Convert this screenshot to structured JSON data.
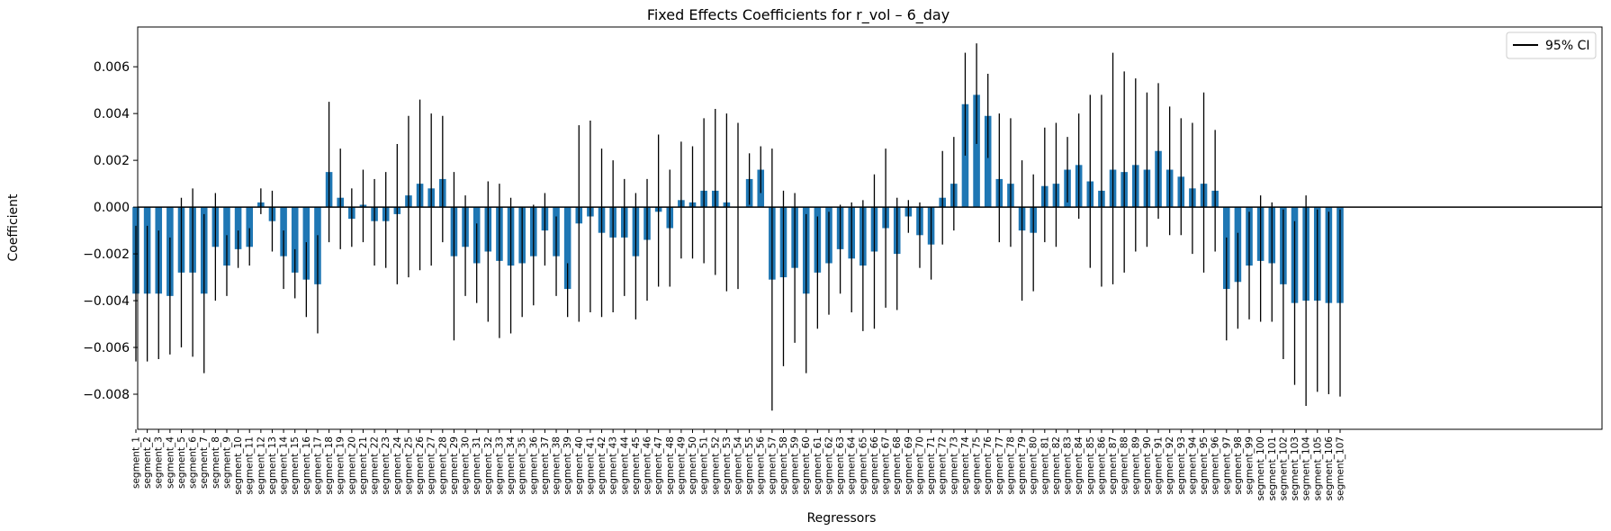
{
  "chart_data": {
    "type": "bar",
    "title": "Fixed Effects Coefficients for r_vol – 6_day",
    "xlabel": "Regressors",
    "ylabel": "Coefficient",
    "ylim": [
      -0.0095,
      0.0077
    ],
    "yticks": [
      -0.008,
      -0.006,
      -0.004,
      -0.002,
      0.0,
      0.002,
      0.004,
      0.006
    ],
    "ytick_labels": [
      "−0.008",
      "−0.006",
      "−0.004",
      "−0.002",
      "0.000",
      "0.002",
      "0.004",
      "0.006"
    ],
    "bar_color": "#1f77b4",
    "errorbar_color": "#000000",
    "zero_line": true,
    "grid": false,
    "legend": {
      "placement": "top-right",
      "entries": [
        "95% CI"
      ]
    },
    "categories": [
      "segment_1",
      "segment_2",
      "segment_3",
      "segment_4",
      "segment_5",
      "segment_6",
      "segment_7",
      "segment_8",
      "segment_9",
      "segment_10",
      "segment_11",
      "segment_12",
      "segment_13",
      "segment_14",
      "segment_15",
      "segment_16",
      "segment_17",
      "segment_18",
      "segment_19",
      "segment_20",
      "segment_21",
      "segment_22",
      "segment_23",
      "segment_24",
      "segment_25",
      "segment_26",
      "segment_27",
      "segment_28",
      "segment_29",
      "segment_30",
      "segment_31",
      "segment_32",
      "segment_33",
      "segment_34",
      "segment_35",
      "segment_36",
      "segment_37",
      "segment_38",
      "segment_39",
      "segment_40",
      "segment_41",
      "segment_42",
      "segment_43",
      "segment_44",
      "segment_45",
      "segment_46",
      "segment_47",
      "segment_48",
      "segment_49",
      "segment_50",
      "segment_51",
      "segment_52",
      "segment_53",
      "segment_54",
      "segment_55",
      "segment_56",
      "segment_57",
      "segment_58",
      "segment_59",
      "segment_60",
      "segment_61",
      "segment_62",
      "segment_63",
      "segment_64",
      "segment_65",
      "segment_66",
      "segment_67",
      "segment_68",
      "segment_69",
      "segment_70",
      "segment_71",
      "segment_72",
      "segment_73",
      "segment_74",
      "segment_75",
      "segment_76",
      "segment_77",
      "segment_78",
      "segment_79",
      "segment_80",
      "segment_81",
      "segment_82",
      "segment_83",
      "segment_84",
      "segment_85",
      "segment_86",
      "segment_87",
      "segment_88",
      "segment_89",
      "segment_90",
      "segment_91",
      "segment_92",
      "segment_93",
      "segment_94",
      "segment_95",
      "segment_96",
      "segment_97",
      "segment_98",
      "segment_99",
      "segment_100",
      "segment_101",
      "segment_102",
      "segment_103",
      "segment_104",
      "segment_105",
      "segment_106",
      "segment_107"
    ],
    "values": [
      -0.0037,
      -0.0037,
      -0.0037,
      -0.0038,
      -0.0028,
      -0.0028,
      -0.0037,
      -0.0017,
      -0.0025,
      -0.0018,
      -0.0017,
      0.0002,
      -0.0006,
      -0.0021,
      -0.0028,
      -0.0031,
      -0.0033,
      0.0015,
      0.0004,
      -0.0005,
      0.0001,
      -0.0006,
      -0.0006,
      -0.0003,
      0.0005,
      0.001,
      0.0008,
      0.0012,
      -0.0021,
      -0.0017,
      -0.0024,
      -0.0019,
      -0.0023,
      -0.0025,
      -0.0024,
      -0.0021,
      -0.001,
      -0.0021,
      -0.0035,
      -0.0007,
      -0.0004,
      -0.0011,
      -0.0013,
      -0.0013,
      -0.0021,
      -0.0014,
      -0.0002,
      -0.0009,
      0.0003,
      0.0002,
      0.0007,
      0.0007,
      0.0002,
      0.0,
      0.0012,
      0.0016,
      -0.0031,
      -0.003,
      -0.0026,
      -0.0037,
      -0.0028,
      -0.0024,
      -0.0018,
      -0.0022,
      -0.0025,
      -0.0019,
      -0.0009,
      -0.002,
      -0.0004,
      -0.0012,
      -0.0016,
      0.0004,
      0.001,
      0.0044,
      0.0048,
      0.0039,
      0.0012,
      0.001,
      -0.001,
      -0.0011,
      0.0009,
      0.001,
      0.0016,
      0.0018,
      0.0011,
      0.0007,
      0.0016,
      0.0015,
      0.0018,
      0.0016,
      0.0024,
      0.0016,
      0.0013,
      0.0008,
      0.001,
      0.0007,
      -0.0035,
      -0.0032,
      -0.0025,
      -0.0023,
      -0.0024,
      -0.0033,
      -0.0041,
      -0.004,
      -0.004,
      -0.0041,
      -0.0041
    ],
    "ci_low": [
      -0.0066,
      -0.0066,
      -0.0065,
      -0.0063,
      -0.006,
      -0.0064,
      -0.0071,
      -0.004,
      -0.0038,
      -0.0026,
      -0.0025,
      -0.0003,
      -0.0019,
      -0.0035,
      -0.0039,
      -0.0047,
      -0.0054,
      -0.0015,
      -0.0018,
      -0.0017,
      -0.0015,
      -0.0025,
      -0.0026,
      -0.0033,
      -0.003,
      -0.0027,
      -0.0025,
      -0.0015,
      -0.0057,
      -0.0038,
      -0.0041,
      -0.0049,
      -0.0056,
      -0.0054,
      -0.0047,
      -0.0042,
      -0.0025,
      -0.0038,
      -0.0047,
      -0.0049,
      -0.0045,
      -0.0047,
      -0.0045,
      -0.0038,
      -0.0048,
      -0.004,
      -0.0034,
      -0.0034,
      -0.0022,
      -0.0022,
      -0.0024,
      -0.0029,
      -0.0036,
      -0.0035,
      0.0001,
      0.0006,
      -0.0087,
      -0.0068,
      -0.0058,
      -0.0071,
      -0.0052,
      -0.0046,
      -0.0037,
      -0.0045,
      -0.0053,
      -0.0052,
      -0.0043,
      -0.0044,
      -0.0011,
      -0.0026,
      -0.0031,
      -0.0016,
      -0.001,
      0.0022,
      0.0027,
      0.0021,
      -0.0015,
      -0.0017,
      -0.004,
      -0.0036,
      -0.0015,
      -0.0017,
      0.0002,
      -0.0005,
      -0.0026,
      -0.0034,
      -0.0033,
      -0.0028,
      -0.0019,
      -0.0017,
      -0.0005,
      -0.0012,
      -0.0012,
      -0.002,
      -0.0028,
      -0.0019,
      -0.0057,
      -0.0052,
      -0.0048,
      -0.0049,
      -0.0049,
      -0.0065,
      -0.0076,
      -0.0085,
      -0.0079,
      -0.008,
      -0.0081
    ],
    "ci_high": [
      -0.0008,
      -0.0008,
      -0.001,
      -0.0013,
      0.0004,
      0.0008,
      -0.0003,
      0.0006,
      -0.0012,
      -0.001,
      -0.0009,
      0.0008,
      0.0007,
      -0.001,
      -0.0018,
      -0.0015,
      -0.0012,
      0.0045,
      0.0025,
      0.0008,
      0.0016,
      0.0012,
      0.0015,
      0.0027,
      0.0039,
      0.0046,
      0.004,
      0.0039,
      0.0015,
      0.0005,
      -0.0007,
      0.0011,
      0.001,
      0.0004,
      0.0,
      0.0001,
      0.0006,
      -0.0004,
      -0.0024,
      0.0035,
      0.0037,
      0.0025,
      0.002,
      0.0012,
      0.0006,
      0.0012,
      0.0031,
      0.0016,
      0.0028,
      0.0026,
      0.0038,
      0.0042,
      0.004,
      0.0036,
      0.0023,
      0.0026,
      0.0025,
      0.0007,
      0.0006,
      -0.0003,
      -0.0004,
      -0.0002,
      0.0001,
      0.0002,
      0.0003,
      0.0014,
      0.0025,
      0.0004,
      0.0003,
      0.0002,
      0.0,
      0.0024,
      0.003,
      0.0066,
      0.007,
      0.0057,
      0.004,
      0.0038,
      0.002,
      0.0014,
      0.0034,
      0.0036,
      0.003,
      0.004,
      0.0048,
      0.0048,
      0.0066,
      0.0058,
      0.0055,
      0.0049,
      0.0053,
      0.0043,
      0.0038,
      0.0036,
      0.0049,
      0.0033,
      -0.0013,
      -0.0011,
      -0.0002,
      0.0005,
      0.0002,
      -0.0001,
      -0.0006,
      0.0005,
      -0.0001,
      -0.0002,
      -0.0001
    ]
  }
}
